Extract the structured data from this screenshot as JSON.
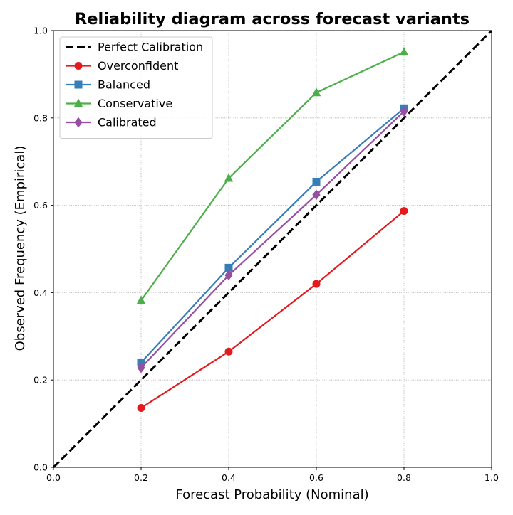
{
  "chart_data": {
    "type": "line",
    "title": "Reliability diagram across forecast variants",
    "xlabel": "Forecast Probability (Nominal)",
    "ylabel": "Observed Frequency (Empirical)",
    "xlim": [
      0.0,
      1.0
    ],
    "ylim": [
      0.0,
      1.0
    ],
    "xticks": [
      "0.0",
      "0.2",
      "0.4",
      "0.6",
      "0.8",
      "1.0"
    ],
    "yticks": [
      "0.0",
      "0.2",
      "0.4",
      "0.6",
      "0.8",
      "1.0"
    ],
    "grid": true,
    "legend_position": "top-left",
    "reference_line": {
      "name": "Perfect Calibration",
      "x": [
        0.0,
        1.0
      ],
      "y": [
        0.0,
        1.0
      ],
      "color": "#000000",
      "style": "dashed"
    },
    "x": [
      0.2,
      0.4,
      0.6,
      0.8
    ],
    "series": [
      {
        "name": "Overconfident",
        "values": [
          0.136,
          0.265,
          0.42,
          0.587
        ],
        "color": "#e41a1c",
        "marker": "circle"
      },
      {
        "name": "Balanced",
        "values": [
          0.24,
          0.457,
          0.654,
          0.822
        ],
        "color": "#377eb8",
        "marker": "square"
      },
      {
        "name": "Conservative",
        "values": [
          0.382,
          0.662,
          0.858,
          0.951
        ],
        "color": "#4daf4a",
        "marker": "triangle"
      },
      {
        "name": "Calibrated",
        "values": [
          0.228,
          0.44,
          0.624,
          0.815
        ],
        "color": "#984ea3",
        "marker": "diamond"
      }
    ]
  }
}
